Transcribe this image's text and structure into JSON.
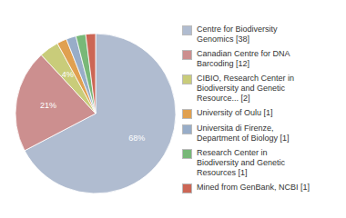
{
  "chart_data": {
    "type": "pie",
    "labels": [
      "Centre for Biodiversity\nGenomics [38]",
      "Canadian Centre for DNA\nBarcoding [12]",
      "CIBIO, Research Center in\nBiodiversity and Genetic\nResource... [2]",
      "University of Oulu [1]",
      "Universita di Firenze,\nDepartment of Biology [1]",
      "Research Center in\nBiodiversity and Genetic\nResources [1]",
      "Mined from GenBank, NCBI [1]"
    ],
    "values": [
      68,
      21,
      4,
      2,
      2,
      2,
      2
    ],
    "value_labels": [
      "68%",
      "21%",
      "4%",
      null,
      null,
      null,
      null
    ],
    "colors": [
      "#b0bcd0",
      "#cc8f8f",
      "#c9cc7a",
      "#e0a050",
      "#98adc8",
      "#78b878",
      "#cc6655"
    ],
    "legend": "right"
  }
}
